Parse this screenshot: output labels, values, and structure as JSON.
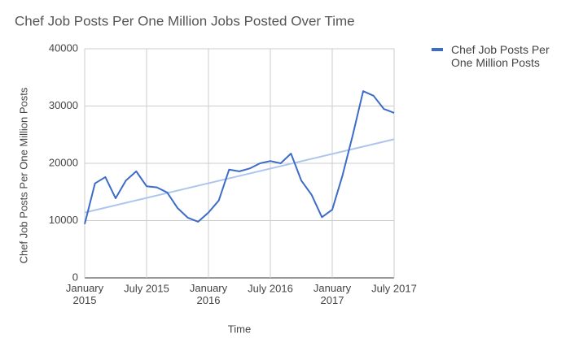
{
  "chart_data": {
    "type": "line",
    "title": "Chef Job Posts Per One Million Jobs Posted Over Time",
    "x_label": "Time",
    "y_label": "Chef Job Posts Per One Million Posts",
    "x": [
      "2015-01",
      "2015-02",
      "2015-03",
      "2015-04",
      "2015-05",
      "2015-06",
      "2015-07",
      "2015-08",
      "2015-09",
      "2015-10",
      "2015-11",
      "2015-12",
      "2016-01",
      "2016-02",
      "2016-03",
      "2016-04",
      "2016-05",
      "2016-06",
      "2016-07",
      "2016-08",
      "2016-09",
      "2016-10",
      "2016-11",
      "2016-12",
      "2017-01",
      "2017-02",
      "2017-03",
      "2017-04",
      "2017-05",
      "2017-06",
      "2017-07"
    ],
    "series": [
      {
        "name": "Chef Job Posts Per One Million Posts",
        "color": "#3d6cc8",
        "values": [
          9400,
          16500,
          17600,
          13900,
          17000,
          18600,
          16000,
          15800,
          14900,
          12200,
          10500,
          9800,
          11400,
          13500,
          18900,
          18600,
          19100,
          20000,
          20400,
          20000,
          21700,
          17000,
          14500,
          10600,
          11900,
          17900,
          25000,
          32600,
          31800,
          29500,
          28800
        ]
      }
    ],
    "trendline": {
      "color": "#adc5ee",
      "x": [
        "2015-01",
        "2017-07"
      ],
      "values": [
        11400,
        24200
      ]
    },
    "xticks": [
      {
        "value": "2015-01",
        "label": "January 2015"
      },
      {
        "value": "2015-07",
        "label": "July 2015"
      },
      {
        "value": "2016-01",
        "label": "January 2016"
      },
      {
        "value": "2016-07",
        "label": "July 2016"
      },
      {
        "value": "2017-01",
        "label": "January 2017"
      },
      {
        "value": "2017-07",
        "label": "July 2017"
      }
    ],
    "ylim": [
      0,
      40000
    ],
    "yticks": [
      0,
      10000,
      20000,
      30000,
      40000
    ],
    "grid": true,
    "legend": "right"
  }
}
